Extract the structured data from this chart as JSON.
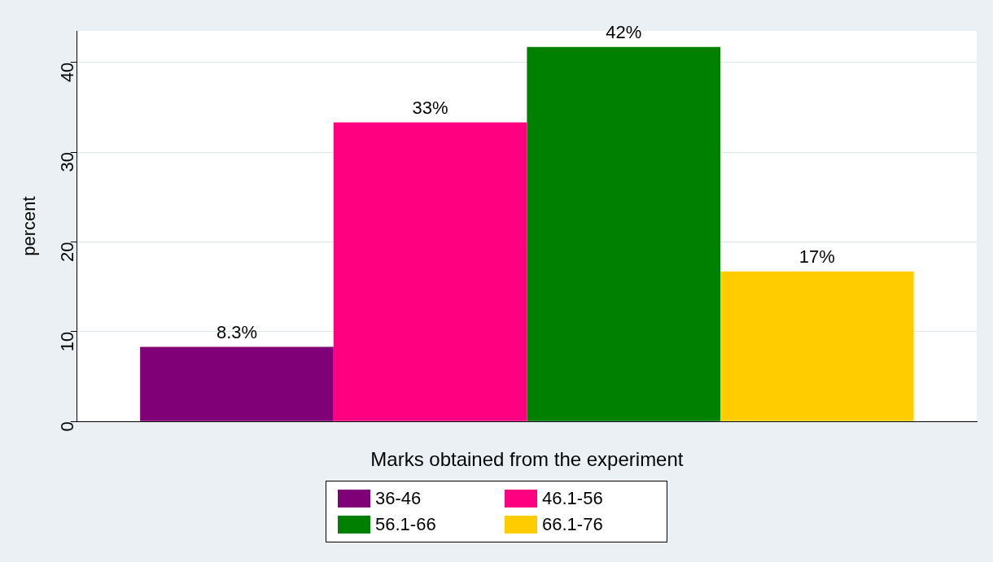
{
  "chart_data": {
    "type": "bar",
    "xlabel": "Marks obtained from the experiment",
    "ylabel": "percent",
    "categories": [
      null
    ],
    "series": [
      {
        "name": "36-46",
        "color": "#800078",
        "values": [
          8.3
        ],
        "value_labels": [
          "8.3%"
        ]
      },
      {
        "name": "46.1-56",
        "color": "#ff0080",
        "values": [
          33.3
        ],
        "value_labels": [
          "33%"
        ]
      },
      {
        "name": "56.1-66",
        "color": "#008000",
        "values": [
          41.7
        ],
        "value_labels": [
          "42%"
        ]
      },
      {
        "name": "66.1-76",
        "color": "#ffcc00",
        "values": [
          16.7
        ],
        "value_labels": [
          "17%"
        ]
      }
    ],
    "ylim": [
      0,
      43.5
    ],
    "yticks": [
      0,
      10,
      20,
      30,
      40
    ],
    "grid": "y",
    "legend": "bottom"
  }
}
